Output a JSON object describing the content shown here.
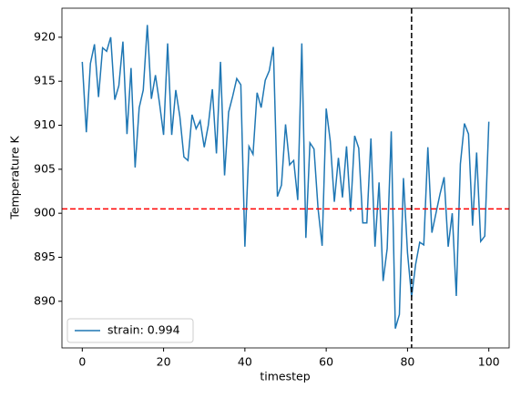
{
  "chart_data": {
    "type": "line",
    "xlabel": "timestep",
    "ylabel": "Temperature K",
    "x": [
      0,
      1,
      2,
      3,
      4,
      5,
      6,
      7,
      8,
      9,
      10,
      11,
      12,
      13,
      14,
      15,
      16,
      17,
      18,
      19,
      20,
      21,
      22,
      23,
      24,
      25,
      26,
      27,
      28,
      29,
      30,
      31,
      32,
      33,
      34,
      35,
      36,
      37,
      38,
      39,
      40,
      41,
      42,
      43,
      44,
      45,
      46,
      47,
      48,
      49,
      50,
      51,
      52,
      53,
      54,
      55,
      56,
      57,
      58,
      59,
      60,
      61,
      62,
      63,
      64,
      65,
      66,
      67,
      68,
      69,
      70,
      71,
      72,
      73,
      74,
      75,
      76,
      77,
      78,
      79,
      80,
      81,
      82,
      83,
      84,
      85,
      86,
      87,
      88,
      89,
      90,
      91,
      92,
      93,
      94,
      95,
      96,
      97,
      98,
      99,
      100
    ],
    "series": [
      {
        "name": "strain: 0.994",
        "color": "#1f77b4",
        "values": [
          917.2,
          909.2,
          917.0,
          919.2,
          913.2,
          918.8,
          918.4,
          920.0,
          912.9,
          914.5,
          919.5,
          909.0,
          916.5,
          905.2,
          912.0,
          914.0,
          921.4,
          913.0,
          915.7,
          912.5,
          908.9,
          919.3,
          908.9,
          914.0,
          911.0,
          906.4,
          906.0,
          911.2,
          909.6,
          910.5,
          907.5,
          910.0,
          914.1,
          906.8,
          917.2,
          904.3,
          911.5,
          913.3,
          915.3,
          914.6,
          896.2,
          907.6,
          906.7,
          913.7,
          912.0,
          915.1,
          916.2,
          918.9,
          901.9,
          903.2,
          910.1,
          905.5,
          906.0,
          901.5,
          919.3,
          897.2,
          908.0,
          907.3,
          900.5,
          896.3,
          911.9,
          908.2,
          901.3,
          906.3,
          901.8,
          907.6,
          900.2,
          908.8,
          907.4,
          898.9,
          898.9,
          908.5,
          896.2,
          903.5,
          892.3,
          896.0,
          909.3,
          886.9,
          888.5,
          904.0,
          895.5,
          890.5,
          894.2,
          896.7,
          896.4,
          907.5,
          897.8,
          900.0,
          902.2,
          904.1,
          896.2,
          900.0,
          890.6,
          905.6,
          910.2,
          909.0,
          898.6,
          906.9,
          896.8,
          897.4,
          910.4
        ]
      }
    ],
    "axhline": {
      "y": 900.5,
      "color": "#ff0000"
    },
    "axvline": {
      "x": 81,
      "color": "#000000"
    },
    "xlim": [
      -5,
      105
    ],
    "ylim": [
      884.7,
      923.3
    ],
    "xticks": [
      0,
      20,
      40,
      60,
      80,
      100
    ],
    "yticks": [
      890,
      895,
      900,
      905,
      910,
      915,
      920
    ],
    "grid": false,
    "legend": "lower left"
  }
}
